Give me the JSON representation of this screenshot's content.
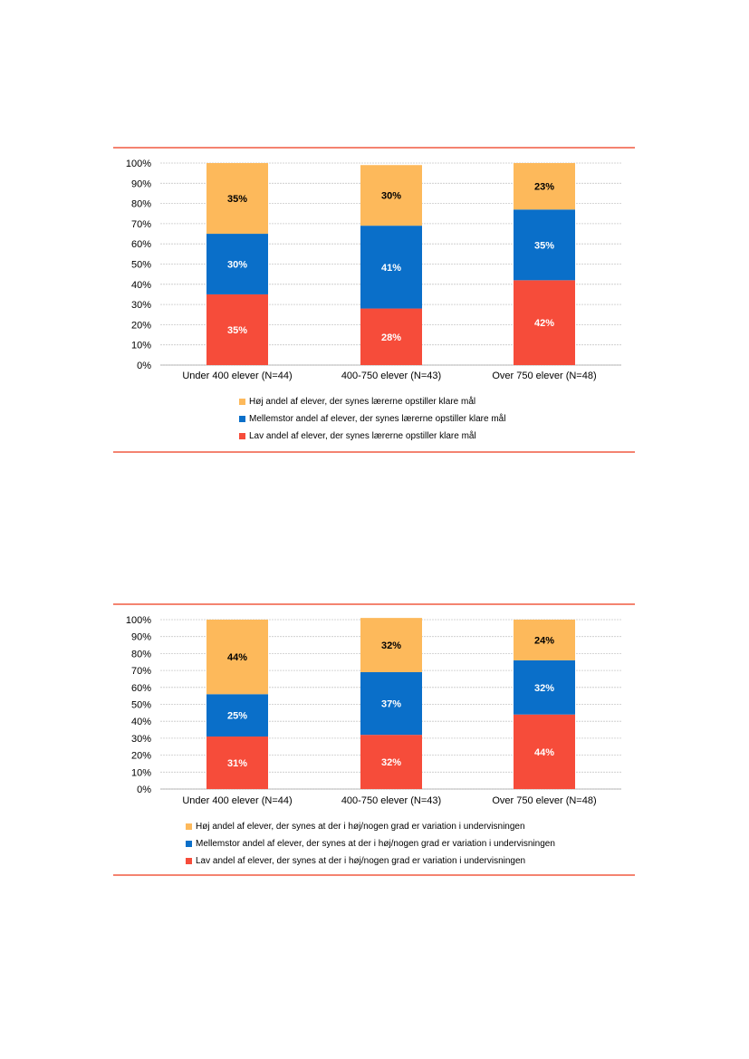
{
  "colors": {
    "rule": "#f15a40",
    "grid": "#c8c8c8",
    "hoej": "#fdb95b",
    "mellem": "#0a6fc9",
    "lav": "#f64c3a",
    "label_dark": "#000000",
    "label_light": "#ffffff"
  },
  "chart_data": [
    {
      "type": "bar",
      "stacked": true,
      "categories": [
        "Under 400 elever (N=44)",
        "400-750 elever (N=43)",
        "Over 750 elever (N=48)"
      ],
      "yticks": [
        "0%",
        "10%",
        "20%",
        "30%",
        "40%",
        "50%",
        "60%",
        "70%",
        "80%",
        "90%",
        "100%"
      ],
      "ylim": [
        0,
        100
      ],
      "grid": true,
      "legend_position": "bottom",
      "series": [
        {
          "name": "Lav andel af elever, der synes lærerne opstiller klare mål",
          "color_key": "lav",
          "values": [
            35,
            28,
            42
          ],
          "labels": [
            "35%",
            "28%",
            "42%"
          ]
        },
        {
          "name": "Mellemstor andel af elever, der synes lærerne opstiller klare mål",
          "color_key": "mellem",
          "values": [
            30,
            41,
            35
          ],
          "labels": [
            "30%",
            "41%",
            "35%"
          ]
        },
        {
          "name": "Høj andel af elever, der synes lærerne opstiller klare mål",
          "color_key": "hoej",
          "values": [
            35,
            30,
            23
          ],
          "labels": [
            "35%",
            "30%",
            "23%"
          ]
        }
      ],
      "legend": [
        "Høj andel af elever, der synes lærerne opstiller klare mål",
        "Mellemstor andel af elever, der synes lærerne opstiller klare mål",
        "Lav andel af elever, der synes lærerne opstiller klare mål"
      ]
    },
    {
      "type": "bar",
      "stacked": true,
      "categories": [
        "Under 400 elever (N=44)",
        "400-750 elever (N=43)",
        "Over 750 elever (N=48)"
      ],
      "yticks": [
        "0%",
        "10%",
        "20%",
        "30%",
        "40%",
        "50%",
        "60%",
        "70%",
        "80%",
        "90%",
        "100%"
      ],
      "ylim": [
        0,
        100
      ],
      "grid": true,
      "legend_position": "bottom",
      "series": [
        {
          "name": "Lav andel af elever,  der synes at der i høj/nogen grad er variation i undervisningen",
          "color_key": "lav",
          "values": [
            31,
            32,
            44
          ],
          "labels": [
            "31%",
            "32%",
            "44%"
          ]
        },
        {
          "name": "Mellemstor andel af elever,  der synes at der i høj/nogen grad er variation i undervisningen",
          "color_key": "mellem",
          "values": [
            25,
            37,
            32
          ],
          "labels": [
            "25%",
            "37%",
            "32%"
          ]
        },
        {
          "name": "Høj andel af elever,  der synes at der i høj/nogen grad er variation i undervisningen",
          "color_key": "hoej",
          "values": [
            44,
            32,
            24
          ],
          "labels": [
            "44%",
            "32%",
            "24%"
          ]
        }
      ],
      "legend": [
        "Høj andel af elever,  der synes at der i høj/nogen grad er variation i undervisningen",
        "Mellemstor andel af elever,  der synes at der i høj/nogen grad er variation i undervisningen",
        "Lav andel af elever,  der synes at der i høj/nogen grad er variation i undervisningen"
      ]
    }
  ]
}
